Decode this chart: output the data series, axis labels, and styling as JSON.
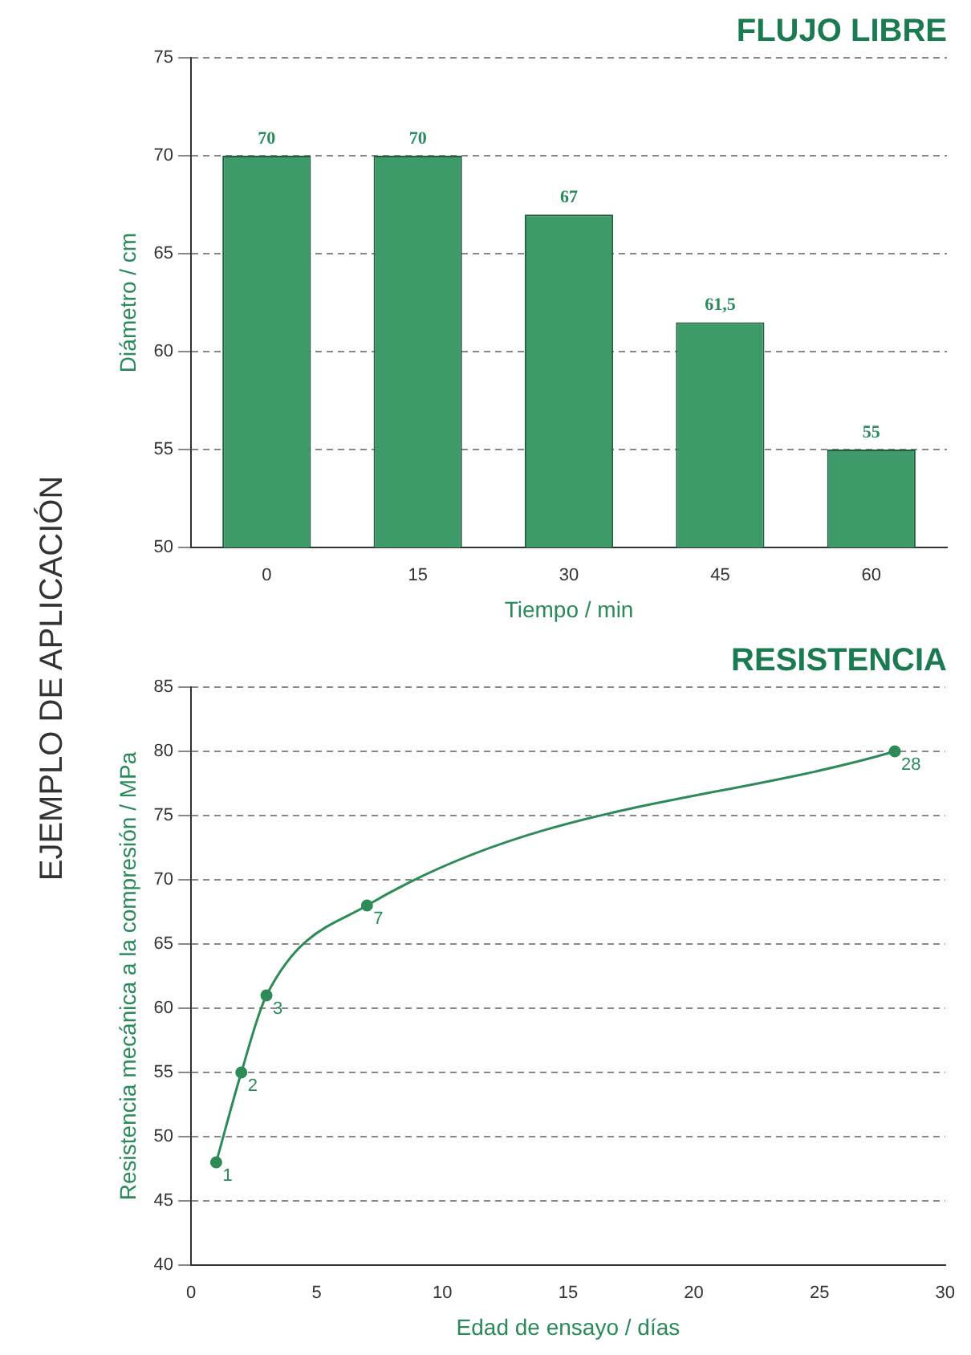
{
  "chart_data": [
    {
      "type": "bar",
      "title": "FLUJO LIBRE",
      "xlabel": "Tiempo / min",
      "ylabel": "Diámetro / cm",
      "categories": [
        "0",
        "15",
        "30",
        "45",
        "60"
      ],
      "values": [
        70,
        70,
        67,
        61.5,
        55
      ],
      "value_labels": [
        "70",
        "70",
        "67",
        "61,5",
        "55"
      ],
      "color": "#3f9a6a",
      "ylim": [
        50,
        75
      ],
      "yticks": [
        50,
        55,
        60,
        65,
        70,
        75
      ],
      "grid": "y",
      "legend": false,
      "annotations": [
        "EJEMPLO DE APLICACIÓN"
      ]
    },
    {
      "type": "line",
      "title": "RESISTENCIA",
      "xlabel": "Edad de ensayo / días",
      "ylabel": "Resistencia mecánica a la compresión / MPa",
      "x": [
        1,
        2,
        3,
        7,
        28
      ],
      "values": [
        48,
        55,
        61,
        68,
        80
      ],
      "color": "#2e8b57",
      "marker": "circle",
      "xlim": [
        0,
        30
      ],
      "xticks": [
        0,
        5,
        10,
        15,
        20,
        25,
        30
      ],
      "ylim": [
        40,
        85
      ],
      "yticks": [
        40,
        45,
        50,
        55,
        60,
        65,
        70,
        75,
        80,
        85
      ],
      "grid": "y",
      "legend": false,
      "annotations": [
        {
          "text": "1",
          "x": 1,
          "y": 48
        },
        {
          "text": "2",
          "x": 2,
          "y": 55
        },
        {
          "text": "3",
          "x": 3,
          "y": 61
        },
        {
          "text": "7",
          "x": 7,
          "y": 68
        },
        {
          "text": "28",
          "x": 28,
          "y": 80
        }
      ]
    }
  ]
}
